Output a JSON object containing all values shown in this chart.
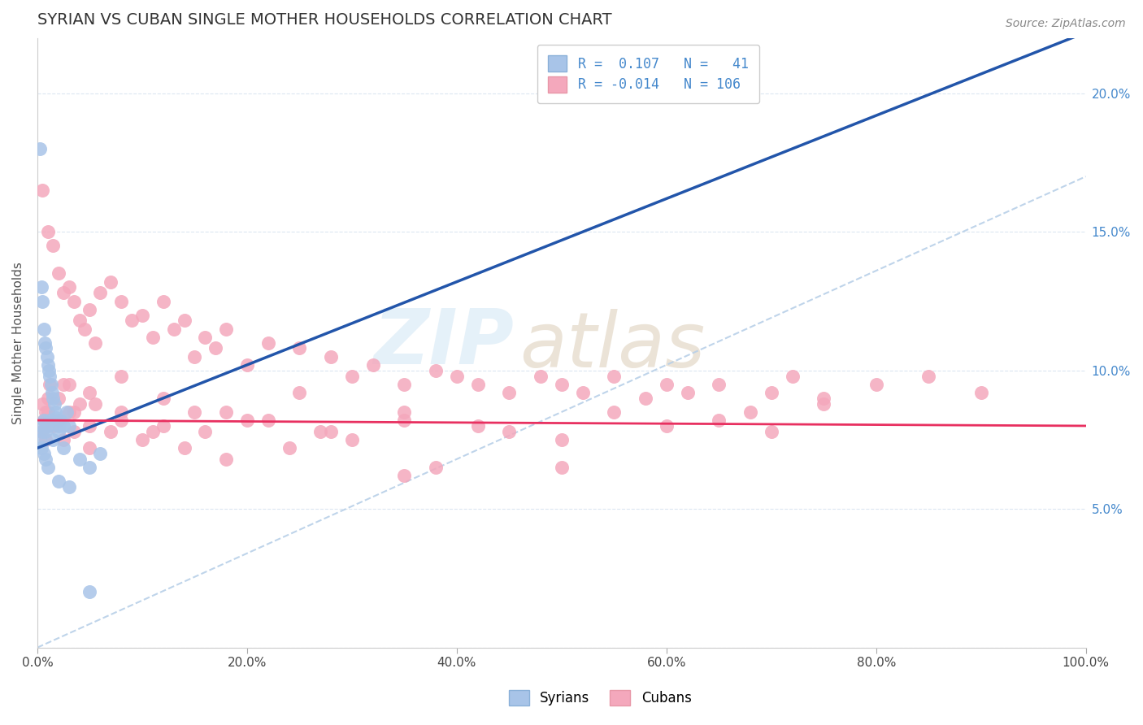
{
  "title": "SYRIAN VS CUBAN SINGLE MOTHER HOUSEHOLDS CORRELATION CHART",
  "source_text": "Source: ZipAtlas.com",
  "ylabel": "Single Mother Households",
  "syrian_color": "#a8c4e8",
  "cuban_color": "#f4a8bc",
  "syrian_line_color": "#2255aa",
  "cuban_line_color": "#e83060",
  "diag_line_color": "#b8d0e8",
  "right_tick_color": "#4488cc",
  "syrian_R": 0.107,
  "syrian_N": 41,
  "cuban_R": -0.014,
  "cuban_N": 106,
  "syrian_points_x": [
    0.2,
    0.4,
    0.5,
    0.6,
    0.7,
    0.8,
    0.9,
    1.0,
    1.1,
    1.2,
    1.3,
    1.4,
    1.5,
    1.6,
    1.7,
    1.8,
    2.0,
    2.2,
    2.5,
    2.8,
    0.3,
    0.5,
    0.6,
    0.8,
    1.0,
    1.2,
    1.5,
    2.0,
    2.5,
    3.0,
    4.0,
    5.0,
    6.0,
    0.2,
    0.4,
    0.6,
    0.8,
    1.0,
    2.0,
    3.0,
    5.0
  ],
  "syrian_points_y": [
    18.0,
    13.0,
    12.5,
    11.5,
    11.0,
    10.8,
    10.5,
    10.2,
    10.0,
    9.8,
    9.5,
    9.2,
    9.0,
    8.8,
    8.5,
    8.3,
    8.0,
    8.2,
    8.0,
    8.5,
    8.0,
    7.8,
    8.2,
    7.8,
    8.0,
    8.2,
    7.5,
    7.8,
    7.2,
    8.0,
    6.8,
    6.5,
    7.0,
    7.5,
    7.2,
    7.0,
    6.8,
    6.5,
    6.0,
    5.8,
    2.0
  ],
  "cuban_points_x": [
    0.5,
    1.0,
    1.5,
    2.0,
    2.5,
    3.0,
    3.5,
    4.0,
    4.5,
    5.0,
    5.5,
    6.0,
    7.0,
    8.0,
    9.0,
    10.0,
    11.0,
    12.0,
    13.0,
    14.0,
    15.0,
    16.0,
    17.0,
    18.0,
    20.0,
    22.0,
    25.0,
    28.0,
    30.0,
    32.0,
    35.0,
    38.0,
    40.0,
    42.0,
    45.0,
    48.0,
    50.0,
    52.0,
    55.0,
    58.0,
    60.0,
    62.0,
    65.0,
    68.0,
    70.0,
    72.0,
    75.0,
    80.0,
    85.0,
    90.0,
    0.6,
    1.2,
    2.0,
    3.0,
    4.0,
    0.4,
    0.8,
    1.5,
    2.5,
    3.5,
    5.0,
    7.0,
    10.0,
    14.0,
    18.0,
    24.0,
    30.0,
    38.0,
    0.5,
    1.0,
    2.0,
    3.5,
    5.5,
    8.0,
    11.0,
    15.0,
    20.0,
    27.0,
    35.0,
    45.0,
    55.0,
    65.0,
    75.0,
    0.8,
    1.5,
    3.0,
    5.0,
    8.0,
    12.0,
    16.0,
    22.0,
    28.0,
    35.0,
    42.0,
    50.0,
    60.0,
    70.0,
    1.0,
    2.5,
    5.0,
    8.0,
    12.0,
    18.0,
    25.0,
    35.0,
    50.0
  ],
  "cuban_points_y": [
    16.5,
    15.0,
    14.5,
    13.5,
    12.8,
    13.0,
    12.5,
    11.8,
    11.5,
    12.2,
    11.0,
    12.8,
    13.2,
    12.5,
    11.8,
    12.0,
    11.2,
    12.5,
    11.5,
    11.8,
    10.5,
    11.2,
    10.8,
    11.5,
    10.2,
    11.0,
    10.8,
    10.5,
    9.8,
    10.2,
    9.5,
    10.0,
    9.8,
    9.5,
    9.2,
    9.8,
    9.5,
    9.2,
    9.8,
    9.0,
    9.5,
    9.2,
    9.5,
    8.5,
    9.2,
    9.8,
    9.0,
    9.5,
    9.8,
    9.2,
    8.2,
    9.5,
    9.0,
    9.5,
    8.8,
    7.8,
    8.5,
    8.2,
    7.5,
    7.8,
    7.2,
    7.8,
    7.5,
    7.2,
    6.8,
    7.2,
    7.5,
    6.5,
    8.8,
    8.5,
    8.2,
    8.5,
    8.8,
    8.2,
    7.8,
    8.5,
    8.2,
    7.8,
    8.2,
    7.8,
    8.5,
    8.2,
    8.8,
    7.5,
    8.0,
    8.5,
    8.0,
    8.5,
    8.0,
    7.8,
    8.2,
    7.8,
    8.5,
    8.0,
    7.5,
    8.0,
    7.8,
    9.0,
    9.5,
    9.2,
    9.8,
    9.0,
    8.5,
    9.2,
    6.2,
    6.5
  ]
}
